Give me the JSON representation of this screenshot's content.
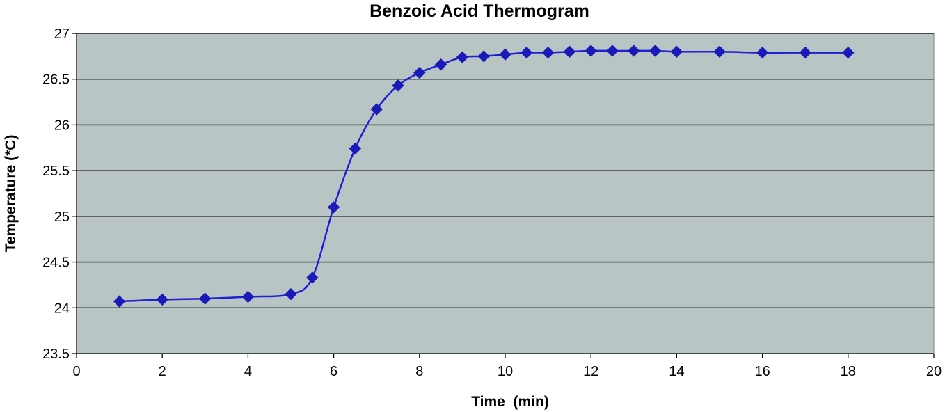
{
  "chart_data": {
    "type": "line",
    "title": "Benzoic Acid Thermogram",
    "xlabel": "Time  (min)",
    "ylabel": "Temperature (*C)",
    "xlim": [
      0,
      20
    ],
    "ylim": [
      23.5,
      27
    ],
    "xticks": [
      0,
      2,
      4,
      6,
      8,
      10,
      12,
      14,
      16,
      18,
      20
    ],
    "yticks": [
      23.5,
      24,
      24.5,
      25,
      25.5,
      26,
      26.5,
      27
    ],
    "ytick_labels": [
      "23.5",
      "24",
      "24.5",
      "25",
      "25.5",
      "26",
      "26.5",
      "27"
    ],
    "xtick_labels": [
      "0",
      "2",
      "4",
      "6",
      "8",
      "10",
      "12",
      "14",
      "16",
      "18",
      "20"
    ],
    "grid": "horizontal",
    "legend": "none",
    "series": [
      {
        "marker": "diamond",
        "smooth": true,
        "x": [
          1,
          2,
          3,
          4,
          5,
          5.5,
          6,
          6.5,
          7,
          7.5,
          8,
          8.5,
          9,
          9.5,
          10,
          10.5,
          11,
          11.5,
          12,
          12.5,
          13,
          13.5,
          14,
          15,
          16,
          17,
          18
        ],
        "y": [
          24.07,
          24.09,
          24.1,
          24.12,
          24.15,
          24.33,
          25.1,
          25.74,
          26.17,
          26.43,
          26.57,
          26.66,
          26.74,
          26.75,
          26.77,
          26.79,
          26.79,
          26.8,
          26.81,
          26.81,
          26.81,
          26.81,
          26.8,
          26.8,
          26.79,
          26.79,
          26.79
        ]
      }
    ],
    "colors": {
      "plot_background": "#b9c5c4",
      "page_background": "#ffffff",
      "gridline": "#000000",
      "series_line": "#1f1fd4",
      "series_marker": "#1a1ab8"
    }
  }
}
